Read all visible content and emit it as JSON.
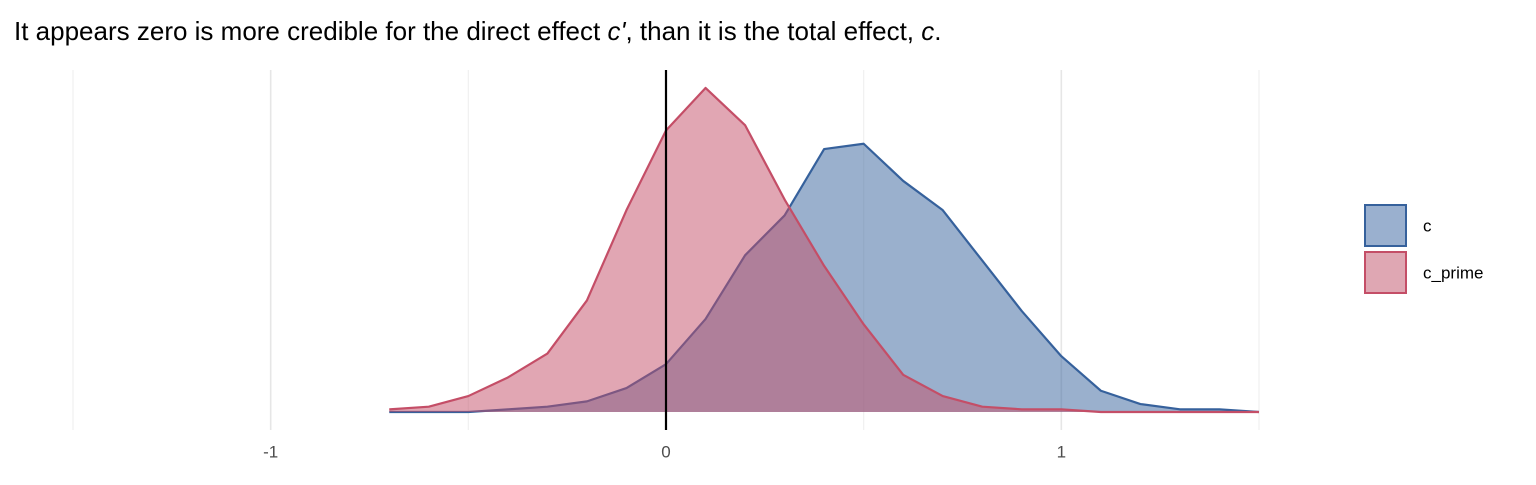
{
  "chart_data": {
    "type": "density",
    "title": [
      "It appears zero is more credible for the direct effect ",
      "c'",
      ", than it is the total effect, ",
      "c",
      "."
    ],
    "x": [
      -0.7,
      -0.6,
      -0.5,
      -0.4,
      -0.3,
      -0.2,
      -0.1,
      0,
      0.1,
      0.2,
      0.3,
      0.4,
      0.5,
      0.6,
      0.7,
      0.8,
      0.9,
      1.0,
      1.1,
      1.2,
      1.3,
      1.4,
      1.5
    ],
    "series": [
      {
        "name": "c",
        "color": "#36619c",
        "fill": "#9ab0cf",
        "values": [
          0,
          0,
          0,
          0.01,
          0.02,
          0.04,
          0.09,
          0.18,
          0.35,
          0.59,
          0.74,
          0.99,
          1.01,
          0.87,
          0.76,
          0.57,
          0.38,
          0.21,
          0.08,
          0.03,
          0.01,
          0.01,
          0
        ]
      },
      {
        "name": "c_prime",
        "color": "#c44e67",
        "fill": "#dfa7b3",
        "values": [
          0.01,
          0.02,
          0.06,
          0.13,
          0.22,
          0.42,
          0.76,
          1.06,
          1.22,
          1.08,
          0.8,
          0.55,
          0.33,
          0.14,
          0.06,
          0.02,
          0.01,
          0.01,
          0,
          0,
          0,
          0,
          0
        ]
      }
    ],
    "xlim": [
      -1.5,
      1.5
    ],
    "xticks": [
      -1,
      0,
      1
    ],
    "minor_xticks": [
      -1.5,
      -0.5,
      0.5,
      1.5
    ],
    "ylim": [
      0,
      1.25
    ],
    "vline": 0,
    "grid": true,
    "legend": "right"
  }
}
